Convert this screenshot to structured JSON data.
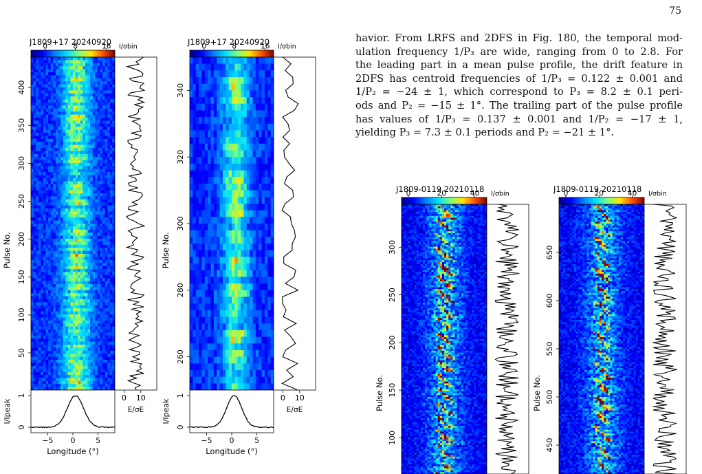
{
  "page_number": "75",
  "paragraph": {
    "lines": [
      "havior. From LRFS and 2DFS in Fig. 180, the temporal mod-",
      "ulation frequency 1/P₃ are wide, ranging from 0 to 2.8. For",
      "the leading part in a mean pulse profile, the drift feature in",
      "2DFS has centroid frequencies of 1/P₃ = 0.122 ± 0.001 and",
      "1/P₂ = −24 ± 1, which correspond to P₃ = 8.2 ± 0.1 peri-",
      "ods and P₂ = −15 ± 1°. The trailing part of the pulse profile",
      "has values of 1/P₃ = 0.137 ± 0.001 and 1/P₂ = −17 ± 1,",
      "yielding P₃ = 7.3 ± 0.1 periods and P₂ = −21 ± 1°."
    ],
    "figure_ref": "180"
  },
  "colormap": [
    "#00007f",
    "#0000ff",
    "#0080ff",
    "#00e0ff",
    "#7dff7a",
    "#ffe600",
    "#ff5000",
    "#7f0000"
  ],
  "panels": [
    {
      "id": "J1809+17-full",
      "title": "J1809+17  20240920",
      "colorbar_ticks": [
        "0",
        "8",
        "16"
      ],
      "colorbar_label": "I/σbin",
      "pulse_range": [
        1,
        440
      ],
      "y_ticks": [
        50,
        100,
        150,
        200,
        250,
        300,
        350,
        400
      ],
      "ylabel": "Pulse No.",
      "energy_ticks": [
        "0",
        "10"
      ],
      "energy_label": "E/σE",
      "profile_ylabel": "I/Ipeak",
      "profile_yticks": [
        "0",
        "1"
      ],
      "longitude_ticks": [
        "−5",
        "0",
        "5"
      ],
      "xlabel": "Longitude (°)"
    },
    {
      "id": "J1809+17-zoom",
      "title": "J1809+17  20240920",
      "colorbar_ticks": [
        "0",
        "8",
        "16"
      ],
      "colorbar_label": "I/σbin",
      "pulse_range": [
        250,
        350
      ],
      "y_ticks": [
        260,
        280,
        300,
        320,
        340
      ],
      "ylabel": "Pulse No.",
      "energy_ticks": [
        "0",
        "10"
      ],
      "energy_label": "E/σE",
      "profile_ylabel": "I/Ipeak",
      "profile_yticks": [
        "0",
        "1"
      ],
      "longitude_ticks": [
        "−5",
        "0",
        "5"
      ],
      "xlabel": "Longitude (°)"
    },
    {
      "id": "J1809-0119-a",
      "title": "J1809-0119  20210118",
      "colorbar_ticks": [
        "0",
        "20",
        "40"
      ],
      "colorbar_label": "I/σbin",
      "pulse_range": [
        62,
        345
      ],
      "y_ticks": [
        100,
        150,
        200,
        250,
        300
      ],
      "ylabel": "Pulse No."
    },
    {
      "id": "J1809-0119-b",
      "title": "J1809-0119  20210118",
      "colorbar_ticks": [
        "0",
        "20",
        "40"
      ],
      "colorbar_label": "I/σbin",
      "pulse_range": [
        420,
        700
      ],
      "y_ticks": [
        450,
        500,
        550,
        600,
        650
      ],
      "ylabel": "Pulse No."
    }
  ]
}
